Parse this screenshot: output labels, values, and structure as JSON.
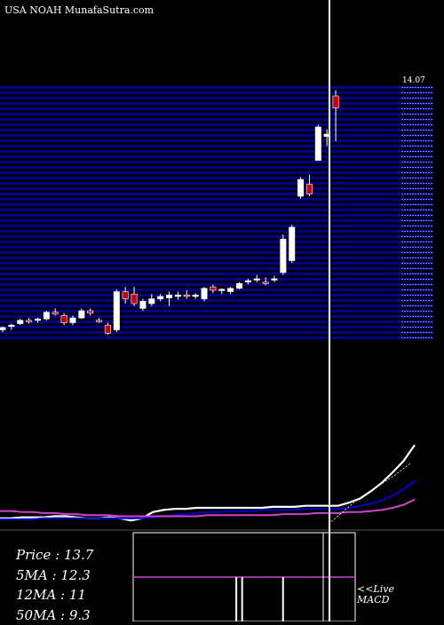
{
  "header": {
    "title": "USA NOAH MunafaSutra.com"
  },
  "stats": [
    {
      "label": "Price",
      "value": "13.7"
    },
    {
      "label": "5MA",
      "value": "12.3"
    },
    {
      "label": "12MA",
      "value": "11"
    },
    {
      "label": "50MA",
      "value": "9.3"
    }
  ],
  "live": {
    "line1": "<<Live",
    "line2": "MACD"
  },
  "colors": {
    "background": "#000000",
    "band": "#00008b",
    "up": "#ffffff",
    "down": "#cc0000",
    "ma_white": "#ffffff",
    "ma_blue": "#0000cc",
    "ma_magenta": "#cc44cc"
  },
  "chart_data": {
    "type": "candlestick",
    "price_top_label": "14.07",
    "candles": [
      {
        "o": 9.05,
        "h": 9.12,
        "l": 9.0,
        "c": 9.1
      },
      {
        "o": 9.12,
        "h": 9.18,
        "l": 9.05,
        "c": 9.15
      },
      {
        "o": 9.18,
        "h": 9.28,
        "l": 9.15,
        "c": 9.25
      },
      {
        "o": 9.25,
        "h": 9.3,
        "l": 9.18,
        "c": 9.22
      },
      {
        "o": 9.25,
        "h": 9.3,
        "l": 9.2,
        "c": 9.28
      },
      {
        "o": 9.28,
        "h": 9.45,
        "l": 9.25,
        "c": 9.42
      },
      {
        "o": 9.42,
        "h": 9.5,
        "l": 9.35,
        "c": 9.38
      },
      {
        "o": 9.35,
        "h": 9.4,
        "l": 9.15,
        "c": 9.2
      },
      {
        "o": 9.2,
        "h": 9.35,
        "l": 9.15,
        "c": 9.3
      },
      {
        "o": 9.3,
        "h": 9.5,
        "l": 9.28,
        "c": 9.45
      },
      {
        "o": 9.45,
        "h": 9.5,
        "l": 9.35,
        "c": 9.4
      },
      {
        "o": 9.25,
        "h": 9.3,
        "l": 9.2,
        "c": 9.22
      },
      {
        "o": 9.15,
        "h": 9.2,
        "l": 8.95,
        "c": 8.98
      },
      {
        "o": 9.05,
        "h": 9.9,
        "l": 9.0,
        "c": 9.85
      },
      {
        "o": 9.85,
        "h": 9.95,
        "l": 9.6,
        "c": 9.7
      },
      {
        "o": 9.8,
        "h": 9.95,
        "l": 9.55,
        "c": 9.6
      },
      {
        "o": 9.5,
        "h": 9.7,
        "l": 9.45,
        "c": 9.65
      },
      {
        "o": 9.6,
        "h": 9.8,
        "l": 9.55,
        "c": 9.7
      },
      {
        "o": 9.7,
        "h": 9.8,
        "l": 9.65,
        "c": 9.75
      },
      {
        "o": 9.72,
        "h": 9.85,
        "l": 9.55,
        "c": 9.78
      },
      {
        "o": 9.75,
        "h": 9.85,
        "l": 9.68,
        "c": 9.78
      },
      {
        "o": 9.78,
        "h": 9.88,
        "l": 9.7,
        "c": 9.75
      },
      {
        "o": 9.75,
        "h": 9.82,
        "l": 9.7,
        "c": 9.78
      },
      {
        "o": 9.7,
        "h": 9.95,
        "l": 9.65,
        "c": 9.92
      },
      {
        "o": 9.95,
        "h": 10.0,
        "l": 9.82,
        "c": 9.88
      },
      {
        "o": 9.88,
        "h": 9.92,
        "l": 9.8,
        "c": 9.9
      },
      {
        "o": 9.85,
        "h": 9.95,
        "l": 9.8,
        "c": 9.92
      },
      {
        "o": 9.92,
        "h": 10.05,
        "l": 9.9,
        "c": 10.02
      },
      {
        "o": 10.05,
        "h": 10.12,
        "l": 10.0,
        "c": 10.08
      },
      {
        "o": 10.1,
        "h": 10.2,
        "l": 10.05,
        "c": 10.12
      },
      {
        "o": 10.05,
        "h": 10.15,
        "l": 9.98,
        "c": 10.02
      },
      {
        "o": 10.1,
        "h": 10.18,
        "l": 10.05,
        "c": 10.12
      },
      {
        "o": 10.25,
        "h": 11.05,
        "l": 10.2,
        "c": 10.95
      },
      {
        "o": 10.5,
        "h": 11.25,
        "l": 10.45,
        "c": 11.2
      },
      {
        "o": 11.85,
        "h": 12.25,
        "l": 11.8,
        "c": 12.2
      },
      {
        "o": 12.1,
        "h": 12.3,
        "l": 11.85,
        "c": 11.9
      },
      {
        "o": 12.6,
        "h": 13.35,
        "l": 12.6,
        "c": 13.3
      },
      {
        "o": 13.1,
        "h": 13.25,
        "l": 12.9,
        "c": 13.15
      },
      {
        "o": 13.95,
        "h": 14.07,
        "l": 13.0,
        "c": 13.7
      }
    ],
    "ma_lines": [
      {
        "name": "ma_white",
        "values": [
          0.12,
          0.12,
          0.13,
          0.13,
          0.13,
          0.14,
          0.14,
          0.13,
          0.12,
          0.12,
          0.13,
          0.12,
          0.1,
          0.12,
          0.18,
          0.2,
          0.21,
          0.21,
          0.22,
          0.22,
          0.22,
          0.22,
          0.22,
          0.22,
          0.22,
          0.23,
          0.23,
          0.23,
          0.24,
          0.24,
          0.24,
          0.24,
          0.27,
          0.31,
          0.38,
          0.46,
          0.56,
          0.67,
          0.82
        ]
      },
      {
        "name": "ma_blue",
        "values": [
          0.11,
          0.11,
          0.11,
          0.11,
          0.12,
          0.12,
          0.12,
          0.12,
          0.12,
          0.12,
          0.12,
          0.12,
          0.12,
          0.12,
          0.13,
          0.14,
          0.15,
          0.16,
          0.17,
          0.18,
          0.18,
          0.19,
          0.19,
          0.19,
          0.2,
          0.2,
          0.2,
          0.2,
          0.21,
          0.21,
          0.21,
          0.21,
          0.22,
          0.24,
          0.26,
          0.29,
          0.34,
          0.4,
          0.48
        ]
      },
      {
        "name": "ma_magenta",
        "values": [
          0.19,
          0.19,
          0.18,
          0.18,
          0.17,
          0.17,
          0.16,
          0.16,
          0.15,
          0.15,
          0.15,
          0.14,
          0.14,
          0.14,
          0.14,
          0.14,
          0.14,
          0.14,
          0.14,
          0.15,
          0.15,
          0.15,
          0.15,
          0.15,
          0.15,
          0.15,
          0.16,
          0.16,
          0.16,
          0.17,
          0.17,
          0.17,
          0.18,
          0.18,
          0.19,
          0.2,
          0.22,
          0.25,
          0.3
        ]
      }
    ],
    "macd": [
      0.2,
      0.2,
      0.2,
      0.2,
      0.2,
      0.2,
      0.2,
      0.2,
      0.2,
      0.2,
      0.2,
      0.2,
      0.2,
      0.2,
      1.0,
      0.7,
      0.2,
      0.2,
      0.2,
      0.2,
      0.2,
      0.2,
      0.9,
      0.5,
      0.2,
      0.2,
      0.2,
      0.2,
      0.2,
      0.2,
      0.2,
      0.2,
      0.2,
      0.2,
      0.2,
      0.2,
      0.2,
      0.2,
      0.2
    ]
  }
}
